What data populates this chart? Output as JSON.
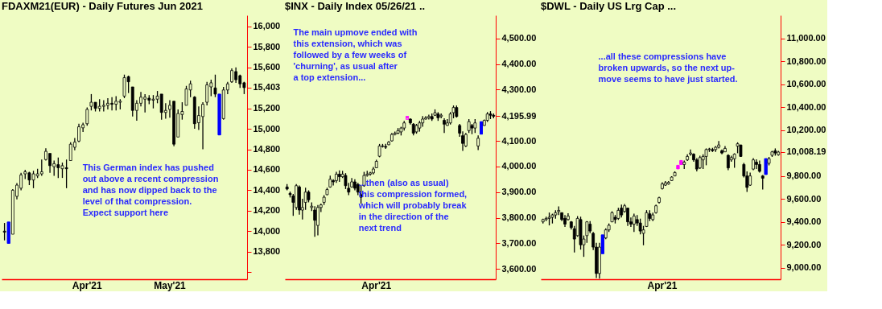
{
  "chart_data": [
    {
      "type": "candlestick",
      "title": "FDAXM21(EUR) - Daily  Futures Jun 2021",
      "categories": [
        null,
        null,
        null,
        null,
        null,
        null,
        null,
        null,
        null,
        null,
        null,
        null,
        null,
        null,
        null,
        null,
        null,
        null,
        null,
        null,
        "Apr'21",
        null,
        null,
        null,
        null,
        null,
        null,
        null,
        null,
        null,
        null,
        null,
        null,
        null,
        null,
        null,
        null,
        null,
        null,
        null,
        "May'21",
        null,
        null,
        null,
        null,
        null,
        null,
        null,
        null,
        null,
        null,
        null,
        null,
        null,
        null,
        null,
        null,
        null,
        null
      ],
      "ohlc": [
        [
          14000,
          14080,
          13910,
          13990
        ],
        [
          14090,
          14090,
          13880,
          13880
        ],
        [
          13970,
          14410,
          13970,
          14400
        ],
        [
          14340,
          14470,
          14310,
          14450
        ],
        [
          14420,
          14570,
          14400,
          14550
        ],
        [
          14560,
          14600,
          14510,
          14580
        ],
        [
          14570,
          14580,
          14450,
          14500
        ],
        [
          14500,
          14590,
          14420,
          14560
        ],
        [
          14540,
          14610,
          14520,
          14560
        ],
        [
          14560,
          14700,
          14540,
          14580
        ],
        [
          14700,
          14810,
          14690,
          14780
        ],
        [
          14760,
          14760,
          14570,
          14640
        ],
        [
          14630,
          14690,
          14540,
          14660
        ],
        [
          14650,
          14720,
          14520,
          14620
        ],
        [
          14610,
          14670,
          14520,
          14640
        ],
        [
          14620,
          14700,
          14420,
          14610
        ],
        [
          14690,
          14870,
          14690,
          14850
        ],
        [
          14820,
          14910,
          14790,
          14870
        ],
        [
          14880,
          15050,
          14870,
          15020
        ],
        [
          15010,
          15060,
          14970,
          15040
        ],
        [
          15050,
          15210,
          15030,
          15190
        ],
        [
          15220,
          15340,
          15180,
          15260
        ],
        [
          15260,
          15260,
          15170,
          15200
        ],
        [
          15200,
          15290,
          15170,
          15220
        ],
        [
          15220,
          15280,
          15170,
          15230
        ],
        [
          15230,
          15300,
          15190,
          15250
        ],
        [
          15250,
          15310,
          15180,
          15240
        ],
        [
          15240,
          15320,
          15180,
          15270
        ],
        [
          15260,
          15290,
          15190,
          15270
        ],
        [
          15320,
          15530,
          15300,
          15500
        ],
        [
          15510,
          15520,
          15350,
          15460
        ],
        [
          15410,
          15410,
          15120,
          15180
        ],
        [
          15180,
          15280,
          15080,
          15250
        ],
        [
          15250,
          15360,
          15220,
          15310
        ],
        [
          15290,
          15340,
          15160,
          15310
        ],
        [
          15300,
          15330,
          15240,
          15280
        ],
        [
          15280,
          15330,
          15200,
          15290
        ],
        [
          15290,
          15370,
          15250,
          15320
        ],
        [
          15340,
          15340,
          15090,
          15160
        ],
        [
          15160,
          15250,
          15100,
          15180
        ],
        [
          15190,
          15280,
          15110,
          15230
        ],
        [
          15270,
          15270,
          14830,
          14850
        ],
        [
          14920,
          15190,
          14920,
          15150
        ],
        [
          15140,
          15260,
          15090,
          15170
        ],
        [
          15230,
          15420,
          15230,
          15390
        ],
        [
          15380,
          15470,
          15310,
          15440
        ],
        [
          15310,
          15320,
          15000,
          15050
        ],
        [
          15060,
          15220,
          14990,
          15130
        ],
        [
          15120,
          15260,
          14800,
          15240
        ],
        [
          15260,
          15460,
          15230,
          15430
        ],
        [
          15410,
          15480,
          15320,
          15450
        ],
        [
          15400,
          15530,
          15310,
          15340
        ],
        [
          15340,
          15340,
          14940,
          14940
        ],
        [
          15100,
          15410,
          15090,
          15380
        ],
        [
          15380,
          15460,
          15340,
          15440
        ],
        [
          15460,
          15590,
          15450,
          15570
        ],
        [
          15560,
          15600,
          15450,
          15480
        ],
        [
          15520,
          15530,
          15400,
          15440
        ],
        [
          15450,
          15460,
          15340,
          15403
        ]
      ],
      "colors": [
        "#000000",
        "#0000ff",
        "#000000",
        "#000000",
        "#000000",
        "#000000",
        "#000000",
        "#000000",
        "#000000",
        "#000000",
        "#000000",
        "#000000",
        "#000000",
        "#000000",
        "#000000",
        "#000000",
        "#000000",
        "#000000",
        "#000000",
        "#000000",
        "#000000",
        "#000000",
        "#000000",
        "#000000",
        "#000000",
        "#000000",
        "#000000",
        "#000000",
        "#000000",
        "#000000",
        "#000000",
        "#000000",
        "#000000",
        "#000000",
        "#000000",
        "#000000",
        "#000000",
        "#000000",
        "#000000",
        "#000000",
        "#000000",
        "#000000",
        "#000000",
        "#000000",
        "#000000",
        "#000000",
        "#000000",
        "#000000",
        "#000000",
        "#000000",
        "#000000",
        "#000000",
        "#0000ff",
        "#000000",
        "#000000",
        "#000000",
        "#000000",
        "#000000",
        "#000000"
      ],
      "ylim": [
        13530,
        16110
      ],
      "yticks": [
        {
          "value": 13600,
          "label": null
        },
        {
          "value": 13800,
          "label": "13,800"
        },
        {
          "value": 14000,
          "label": "14,000"
        },
        {
          "value": 14200,
          "label": "14,200"
        },
        {
          "value": 14400,
          "label": "14,400"
        },
        {
          "value": 14600,
          "label": "14,600"
        },
        {
          "value": 14800,
          "label": "14,800"
        },
        {
          "value": 15000,
          "label": "15,000"
        },
        {
          "value": 15200,
          "label": "15,200"
        },
        {
          "value": 15403,
          "label": "15,403"
        },
        {
          "value": 15600,
          "label": "15,600"
        },
        {
          "value": 15800,
          "label": "15,800"
        },
        {
          "value": 16000,
          "label": "16,000"
        }
      ],
      "annotations": [
        "This German index has pushed out above a recent compression and has now dipped back to the level of that compression. Expect support here"
      ]
    },
    {
      "type": "candlestick",
      "title": "$INX - Daily  Index  05/26/21 ..",
      "categories": [
        null,
        null,
        null,
        null,
        null,
        null,
        null,
        null,
        null,
        null,
        null,
        null,
        null,
        null,
        null,
        null,
        null,
        null,
        null,
        null,
        null,
        null,
        null,
        null,
        null,
        null,
        null,
        null,
        null,
        "Apr'21",
        null,
        null,
        null,
        null,
        null,
        null,
        null,
        null,
        null,
        null,
        null,
        null,
        null,
        null,
        null,
        null,
        null,
        null,
        null,
        null,
        null,
        null,
        null,
        null,
        null,
        null,
        null,
        null,
        null,
        null,
        null,
        null,
        null,
        null,
        null,
        null,
        null,
        null
      ],
      "ohlc": [
        [
          3920,
          3931,
          3907,
          3912
        ],
        [
          3895,
          3902,
          3879,
          3890
        ],
        [
          3885,
          3893,
          3807,
          3860
        ],
        [
          3840,
          3931,
          3831,
          3925
        ],
        [
          3920,
          3926,
          3812,
          3830
        ],
        [
          3830,
          3874,
          3793,
          3840
        ],
        [
          3860,
          3917,
          3831,
          3900
        ],
        [
          3900,
          3907,
          3860,
          3870
        ],
        [
          3840,
          3860,
          3826,
          3845
        ],
        [
          3830,
          3845,
          3726,
          3790
        ],
        [
          3770,
          3850,
          3731,
          3840
        ],
        [
          3840,
          3855,
          3822,
          3850
        ],
        [
          3860,
          3888,
          3850,
          3880
        ],
        [
          3890,
          3917,
          3888,
          3910
        ],
        [
          3920,
          3964,
          3917,
          3950
        ],
        [
          3945,
          3950,
          3926,
          3940
        ],
        [
          3945,
          3979,
          3936,
          3970
        ],
        [
          3970,
          3985,
          3940,
          3960
        ],
        [
          3960,
          3983,
          3955,
          3970
        ],
        [
          3965,
          3974,
          3912,
          3925
        ],
        [
          3915,
          3936,
          3888,
          3900
        ],
        [
          3920,
          3955,
          3917,
          3940
        ],
        [
          3940,
          3950,
          3907,
          3915
        ],
        [
          3930,
          3936,
          3888,
          3900
        ],
        [
          3890,
          3926,
          3855,
          3880
        ],
        [
          3925,
          3979,
          3921,
          3965
        ],
        [
          3965,
          3983,
          3960,
          3970
        ],
        [
          3970,
          3979,
          3964,
          3975
        ],
        [
          3975,
          3998,
          3969,
          3990
        ],
        [
          3995,
          4026,
          3993,
          4020
        ],
        [
          4040,
          4088,
          4036,
          4080
        ],
        [
          4078,
          4088,
          4074,
          4080
        ],
        [
          4078,
          4088,
          4069,
          4075
        ],
        [
          4085,
          4099,
          4083,
          4095
        ],
        [
          4100,
          4131,
          4097,
          4125
        ],
        [
          4125,
          4136,
          4121,
          4130
        ],
        [
          4130,
          4150,
          4126,
          4140
        ],
        [
          4135,
          4155,
          4121,
          4150
        ],
        [
          4150,
          4178,
          4140,
          4170
        ],
        [
          4185,
          4197,
          4183,
          4190
        ],
        [
          4185,
          4188,
          4164,
          4170
        ],
        [
          4165,
          4169,
          4121,
          4130
        ],
        [
          4135,
          4166,
          4128,
          4160
        ],
        [
          4150,
          4178,
          4136,
          4170
        ],
        [
          4170,
          4197,
          4155,
          4185
        ],
        [
          4185,
          4197,
          4183,
          4190
        ],
        [
          4190,
          4202,
          4183,
          4195
        ],
        [
          4195,
          4207,
          4178,
          4185
        ],
        [
          4200,
          4223,
          4197,
          4210
        ],
        [
          4205,
          4212,
          4178,
          4190
        ],
        [
          4195,
          4207,
          4188,
          4200
        ],
        [
          4180,
          4188,
          4131,
          4165
        ],
        [
          4160,
          4185,
          4159,
          4170
        ],
        [
          4170,
          4212,
          4164,
          4205
        ],
        [
          4210,
          4238,
          4188,
          4230
        ],
        [
          4230,
          4238,
          4191,
          4195
        ],
        [
          4160,
          4166,
          4116,
          4130
        ],
        [
          4120,
          4137,
          4061,
          4090
        ],
        [
          4080,
          4131,
          4076,
          4125
        ],
        [
          4140,
          4185,
          4131,
          4175
        ],
        [
          4160,
          4166,
          4126,
          4150
        ],
        [
          4150,
          4185,
          4131,
          4170
        ],
        [
          4080,
          4121,
          4064,
          4110
        ],
        [
          4175,
          4175,
          4126,
          4126
        ],
        [
          4160,
          4183,
          4159,
          4180
        ],
        [
          4180,
          4212,
          4174,
          4205
        ],
        [
          4205,
          4216,
          4185,
          4200
        ],
        [
          4200,
          4207,
          4188,
          4195.99
        ]
      ],
      "colors": [
        "#000000",
        "#000000",
        "#000000",
        "#000000",
        "#000000",
        "#000000",
        "#000000",
        "#000000",
        "#000000",
        "#000000",
        "#000000",
        "#000000",
        "#000000",
        "#000000",
        "#000000",
        "#000000",
        "#000000",
        "#000000",
        "#000000",
        "#000000",
        "#000000",
        "#000000",
        "#000000",
        "#000000",
        "#000000",
        "#000000",
        "#000000",
        "#000000",
        "#000000",
        "#000000",
        "#000000",
        "#000000",
        "#000000",
        "#000000",
        "#000000",
        "#000000",
        "#000000",
        "#000000",
        "#000000",
        "#ff00ff",
        "#000000",
        "#000000",
        "#000000",
        "#000000",
        "#000000",
        "#000000",
        "#000000",
        "#000000",
        "#000000",
        "#000000",
        "#000000",
        "#000000",
        "#000000",
        "#000000",
        "#000000",
        "#000000",
        "#000000",
        "#000000",
        "#000000",
        "#000000",
        "#000000",
        "#000000",
        "#000000",
        "#0000ff",
        "#000000",
        "#000000",
        "#000000",
        "#000000"
      ],
      "ylim": [
        3560,
        4590
      ],
      "yticks": [
        {
          "value": 3600,
          "label": "3,600.00"
        },
        {
          "value": 3700,
          "label": "3,700.00"
        },
        {
          "value": 3800,
          "label": "3,800.00"
        },
        {
          "value": 3900,
          "label": "3,900.00"
        },
        {
          "value": 4000,
          "label": "4,000.00"
        },
        {
          "value": 4100,
          "label": "4,100.00"
        },
        {
          "value": 4195.99,
          "label": "4,195.99"
        },
        {
          "value": 4300,
          "label": "4,300.00"
        },
        {
          "value": 4400,
          "label": "4,400.00"
        },
        {
          "value": 4500,
          "label": "4,500.00"
        }
      ],
      "annotations": [
        "The main upmove ended with this extension, which was followed by a few weeks of 'churning', as usual after a top extension...",
        "...then (also as usual) this compression formed, which will probably break in the direction of the next trend"
      ]
    },
    {
      "type": "candlestick",
      "title": "$DWL - Daily  US Lrg Cap  ...",
      "categories": [
        null,
        null,
        null,
        null,
        null,
        null,
        null,
        null,
        null,
        null,
        null,
        null,
        null,
        null,
        null,
        null,
        null,
        null,
        null,
        null,
        null,
        null,
        null,
        null,
        null,
        null,
        null,
        null,
        null,
        null,
        null,
        null,
        null,
        null,
        null,
        null,
        null,
        null,
        "Apr'21",
        null,
        null,
        null,
        null,
        null,
        null,
        null,
        null,
        null,
        null,
        null,
        null,
        null,
        null,
        null,
        null,
        null,
        null,
        null,
        null,
        null,
        null,
        null,
        null,
        null,
        null,
        null,
        null,
        null,
        null,
        null,
        null,
        null,
        null,
        null,
        null,
        null
      ],
      "ohlc": [
        [
          9400,
          9428,
          9386,
          9420
        ],
        [
          9420,
          9445,
          9407,
          9430
        ],
        [
          9430,
          9481,
          9369,
          9440
        ],
        [
          9440,
          9471,
          9386,
          9460
        ],
        [
          9460,
          9502,
          9428,
          9480
        ],
        [
          9490,
          9534,
          9460,
          9500
        ],
        [
          9480,
          9481,
          9407,
          9420
        ],
        [
          9430,
          9460,
          9355,
          9380
        ],
        [
          9420,
          9475,
          9412,
          9450
        ],
        [
          9400,
          9407,
          9333,
          9350
        ],
        [
          9340,
          9365,
          9133,
          9250
        ],
        [
          9280,
          9450,
          9270,
          9430
        ],
        [
          9420,
          9445,
          9158,
          9200
        ],
        [
          9200,
          9281,
          9095,
          9250
        ],
        [
          9280,
          9407,
          9217,
          9400
        ],
        [
          9380,
          9407,
          9302,
          9320
        ],
        [
          9300,
          9312,
          9154,
          9180
        ],
        [
          9180,
          9217,
          8911,
          8950
        ],
        [
          8950,
          9217,
          8905,
          9180
        ],
        [
          9287,
          9287,
          9122,
          9122
        ],
        [
          9260,
          9344,
          9249,
          9330
        ],
        [
          9330,
          9386,
          9312,
          9370
        ],
        [
          9400,
          9492,
          9397,
          9480
        ],
        [
          9440,
          9460,
          9386,
          9420
        ],
        [
          9430,
          9523,
          9418,
          9500
        ],
        [
          9520,
          9551,
          9439,
          9460
        ],
        [
          9490,
          9555,
          9481,
          9540
        ],
        [
          9520,
          9523,
          9365,
          9400
        ],
        [
          9400,
          9439,
          9355,
          9380
        ],
        [
          9380,
          9471,
          9312,
          9450
        ],
        [
          9420,
          9460,
          9365,
          9390
        ],
        [
          9390,
          9428,
          9291,
          9320
        ],
        [
          9300,
          9365,
          9196,
          9330
        ],
        [
          9360,
          9502,
          9355,
          9480
        ],
        [
          9470,
          9502,
          9407,
          9430
        ],
        [
          9420,
          9481,
          9407,
          9460
        ],
        [
          9480,
          9551,
          9471,
          9540
        ],
        [
          9570,
          9618,
          9559,
          9610
        ],
        [
          9690,
          9745,
          9682,
          9730
        ],
        [
          9720,
          9755,
          9713,
          9740
        ],
        [
          9730,
          9755,
          9724,
          9745
        ],
        [
          9760,
          9798,
          9755,
          9790
        ],
        [
          9800,
          9840,
          9798,
          9830
        ],
        [
          9893,
          9893,
          9861,
          9861
        ],
        [
          9935,
          9935,
          9899,
          9899
        ],
        [
          9900,
          9935,
          9861,
          9920
        ],
        [
          9940,
          9988,
          9931,
          9970
        ],
        [
          9990,
          10030,
          9977,
          10000
        ],
        [
          9990,
          9998,
          9924,
          9940
        ],
        [
          9940,
          9956,
          9840,
          9860
        ],
        [
          9870,
          9977,
          9861,
          9960
        ],
        [
          9940,
          9988,
          9861,
          9970
        ],
        [
          9970,
          10040,
          9893,
          10030
        ],
        [
          10030,
          10045,
          10009,
          10035
        ],
        [
          10030,
          10045,
          10009,
          10020
        ],
        [
          10030,
          10061,
          10009,
          10050
        ],
        [
          10050,
          10104,
          10040,
          10070
        ],
        [
          10020,
          10030,
          9988,
          10000
        ],
        [
          10010,
          10061,
          10009,
          10040
        ],
        [
          9980,
          9988,
          9850,
          9870
        ],
        [
          9940,
          9977,
          9924,
          9960
        ],
        [
          9950,
          9998,
          9872,
          9990
        ],
        [
          10060,
          10093,
          9998,
          10080
        ],
        [
          10070,
          10072,
          9966,
          9970
        ],
        [
          9900,
          9914,
          9787,
          9800
        ],
        [
          9800,
          9840,
          9660,
          9700
        ],
        [
          9720,
          9829,
          9713,
          9800
        ],
        [
          9860,
          9956,
          9850,
          9940
        ],
        [
          9920,
          9945,
          9861,
          9900
        ],
        [
          9900,
          9935,
          9829,
          9840
        ],
        [
          9800,
          9808,
          9681,
          9780
        ],
        [
          9952,
          9952,
          9812,
          9812
        ],
        [
          9910,
          9966,
          9892,
          9950
        ],
        [
          9980,
          10019,
          9966,
          10010
        ],
        [
          10020,
          10040,
          9977,
          10000
        ],
        [
          9985,
          10019,
          9977,
          10008.19
        ]
      ],
      "colors": [
        "#000000",
        "#000000",
        "#000000",
        "#000000",
        "#000000",
        "#000000",
        "#000000",
        "#000000",
        "#000000",
        "#000000",
        "#000000",
        "#000000",
        "#000000",
        "#000000",
        "#000000",
        "#000000",
        "#000000",
        "#000000",
        "#000000",
        "#0000ff",
        "#000000",
        "#000000",
        "#000000",
        "#000000",
        "#000000",
        "#000000",
        "#000000",
        "#000000",
        "#000000",
        "#000000",
        "#000000",
        "#000000",
        "#000000",
        "#000000",
        "#000000",
        "#000000",
        "#000000",
        "#000000",
        "#000000",
        "#000000",
        "#000000",
        "#000000",
        "#000000",
        "#ff00ff",
        "#ff00ff",
        "#000000",
        "#000000",
        "#000000",
        "#000000",
        "#000000",
        "#000000",
        "#000000",
        "#000000",
        "#000000",
        "#000000",
        "#000000",
        "#000000",
        "#000000",
        "#000000",
        "#000000",
        "#000000",
        "#000000",
        "#000000",
        "#000000",
        "#000000",
        "#000000",
        "#000000",
        "#000000",
        "#000000",
        "#000000",
        "#000000",
        "#0000ff",
        "#000000",
        "#000000",
        "#000000",
        "#000000"
      ],
      "ylim": [
        8900,
        11200
      ],
      "yticks": [
        {
          "value": 9000,
          "label": "9,000.00"
        },
        {
          "value": 9200,
          "label": "9,200.00"
        },
        {
          "value": 9400,
          "label": "9,400.00"
        },
        {
          "value": 9600,
          "label": "9,600.00"
        },
        {
          "value": 9800,
          "label": "9,800.00"
        },
        {
          "value": 10008.19,
          "label": "10,008.19"
        },
        {
          "value": 10200,
          "label": "10,200.00"
        },
        {
          "value": 10400,
          "label": "10,400.00"
        },
        {
          "value": 10600,
          "label": "10,600.00"
        },
        {
          "value": 10800,
          "label": "10,800.00"
        },
        {
          "value": 11000,
          "label": "11,000.00"
        }
      ],
      "annotations": [
        "...all these compressions have broken upwards, so the next up-move seems to have just started."
      ]
    }
  ]
}
